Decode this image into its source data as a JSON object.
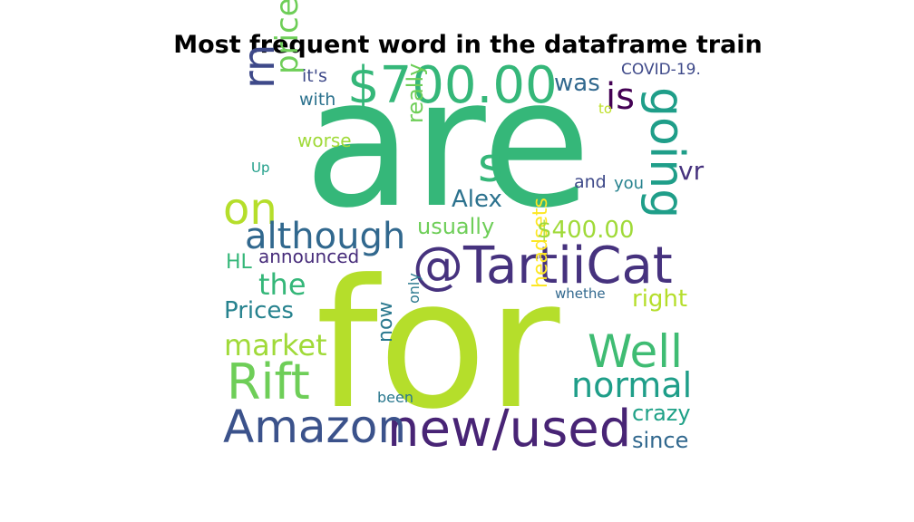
{
  "chart_data": {
    "type": "wordcloud",
    "title": "Most frequent word in the dataframe train",
    "words": [
      {
        "text": "are",
        "color": "#35b779"
      },
      {
        "text": "for",
        "color": "#b5de2b"
      },
      {
        "text": "@TartiiCat",
        "color": "#46327e"
      },
      {
        "text": "new/used",
        "color": "#482475"
      },
      {
        "text": "Amazon",
        "color": "#3b528b"
      },
      {
        "text": "$700.00",
        "color": "#35b779"
      },
      {
        "text": "Rift",
        "color": "#6ece58"
      },
      {
        "text": "Well",
        "color": "#3fbc73"
      },
      {
        "text": "going",
        "color": "#1f9e89"
      },
      {
        "text": "on",
        "color": "#b5de2b"
      },
      {
        "text": "although",
        "color": "#31688e"
      },
      {
        "text": "normal",
        "color": "#1f9e89"
      },
      {
        "text": "rn",
        "color": "#3e4989"
      },
      {
        "text": "s",
        "color": "#35b779"
      },
      {
        "text": "is",
        "color": "#440154"
      },
      {
        "text": "price",
        "color": "#6ece58"
      },
      {
        "text": "market",
        "color": "#a0da39"
      },
      {
        "text": "the",
        "color": "#35b779"
      },
      {
        "text": "Prices",
        "color": "#26828e"
      },
      {
        "text": "headsets",
        "color": "#fde725"
      },
      {
        "text": "now",
        "color": "#2a788e"
      },
      {
        "text": "right",
        "color": "#b5de2b"
      },
      {
        "text": "$400.00",
        "color": "#a0da39"
      },
      {
        "text": "usually",
        "color": "#6ece58"
      },
      {
        "text": "Alex",
        "color": "#2c728e"
      },
      {
        "text": "really",
        "color": "#6ece58"
      },
      {
        "text": "was",
        "color": "#31688e"
      },
      {
        "text": "crazy",
        "color": "#1fa187"
      },
      {
        "text": "since",
        "color": "#31688e"
      },
      {
        "text": "vr",
        "color": "#46327e"
      },
      {
        "text": "HL",
        "color": "#35b779"
      },
      {
        "text": "announced",
        "color": "#472c7a"
      },
      {
        "text": "worse",
        "color": "#a0da39"
      },
      {
        "text": "with",
        "color": "#2c728e"
      },
      {
        "text": "it's",
        "color": "#3e4989"
      },
      {
        "text": "and",
        "color": "#3e4989"
      },
      {
        "text": "you",
        "color": "#26828e"
      },
      {
        "text": "COVID-19.",
        "color": "#3e4989"
      },
      {
        "text": "to",
        "color": "#bddf26"
      },
      {
        "text": "Up",
        "color": "#1f9e89"
      },
      {
        "text": "only",
        "color": "#2a788e"
      },
      {
        "text": "been",
        "color": "#2a788e"
      },
      {
        "text": "whethe",
        "color": "#31688e"
      }
    ]
  }
}
